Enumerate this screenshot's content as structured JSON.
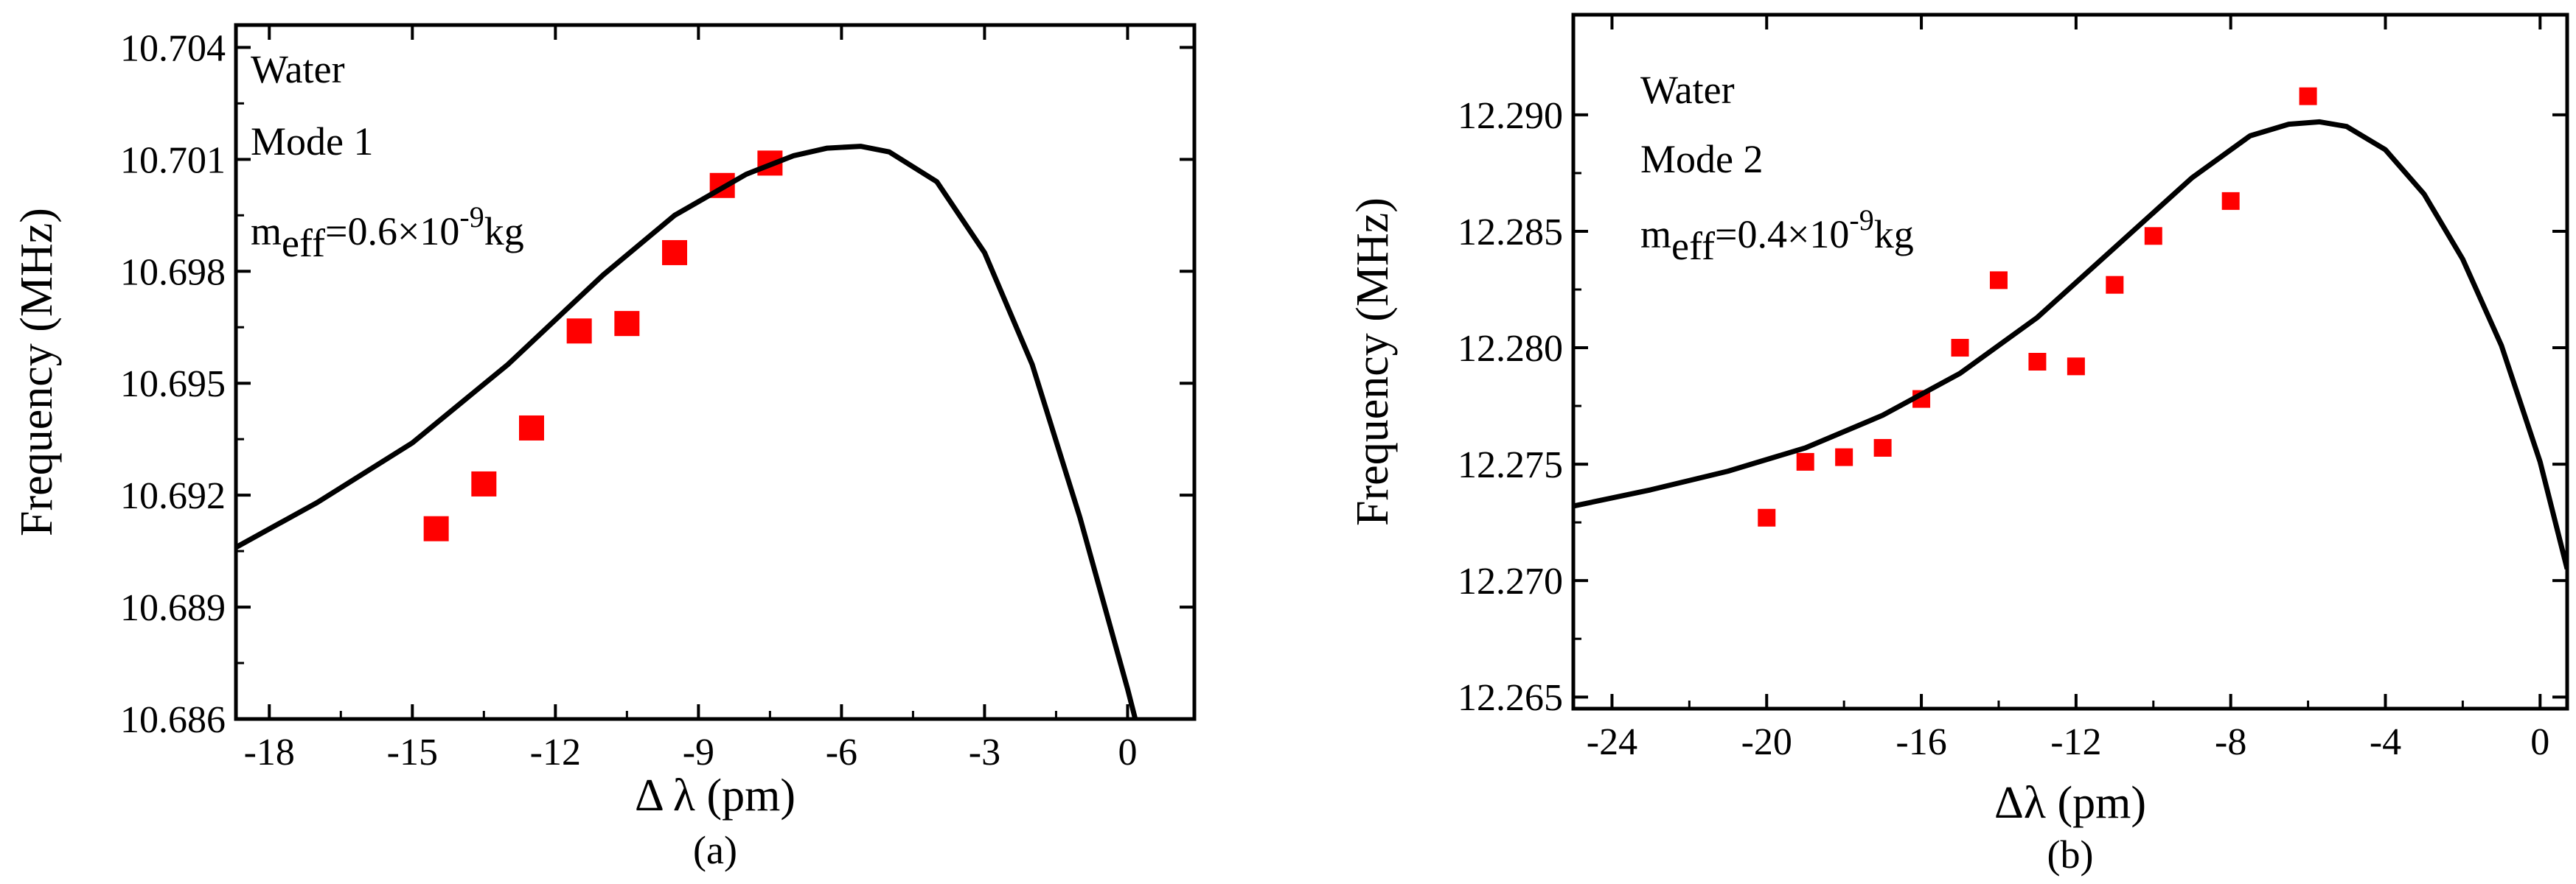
{
  "chart_data": [
    {
      "type": "scatter",
      "panel_label": "(a)",
      "xlabel": "Δ λ (pm)",
      "ylabel": "Frequency (MHz)",
      "xlim": [
        -18.7,
        1.4
      ],
      "ylim": [
        10.686,
        10.7046
      ],
      "xticks": [
        -18,
        -15,
        -12,
        -9,
        -6,
        -3,
        0
      ],
      "xtick_labels": [
        "-18",
        "-15",
        "-12",
        "-9",
        "-6",
        "-3",
        "0"
      ],
      "yticks": [
        10.686,
        10.689,
        10.692,
        10.695,
        10.698,
        10.701,
        10.704
      ],
      "ytick_labels": [
        "10.686",
        "10.689",
        "10.692",
        "10.695",
        "10.698",
        "10.701",
        "10.704"
      ],
      "annotations": {
        "line1": "Water",
        "line2": "Mode 1",
        "meff_prefix": "m",
        "meff_sub": "eff",
        "meff_mid": "=0.6×10",
        "meff_sup": "-9",
        "meff_suffix": "kg"
      },
      "marker_color": "#ff0000",
      "line_color": "#000000",
      "series": [
        {
          "kind": "points",
          "x": [
            -14.5,
            -13.5,
            -12.5,
            -11.5,
            -10.5,
            -9.5,
            -8.5,
            -7.5
          ],
          "y": [
            10.6911,
            10.6923,
            10.6938,
            10.6964,
            10.6966,
            10.6985,
            10.7003,
            10.7009
          ]
        },
        {
          "kind": "line",
          "x": [
            -18.7,
            -17,
            -15,
            -13,
            -11,
            -9.5,
            -8,
            -7,
            -6.3,
            -5.6,
            -5,
            -4,
            -3,
            -2,
            -1,
            0,
            0.2
          ],
          "y": [
            10.6906,
            10.6918,
            10.6934,
            10.6955,
            10.6979,
            10.6995,
            10.7006,
            10.7011,
            10.7013,
            10.70135,
            10.7012,
            10.7004,
            10.6985,
            10.6955,
            10.6914,
            10.6868,
            10.6858
          ]
        }
      ]
    },
    {
      "type": "scatter",
      "panel_label": "(b)",
      "xlabel": "Δλ (pm)",
      "ylabel": "Frequency (MHz)",
      "xlim": [
        -25,
        0.7
      ],
      "ylim": [
        12.2645,
        12.2943
      ],
      "xticks": [
        -24,
        -20,
        -16,
        -12,
        -8,
        -4,
        0
      ],
      "xtick_labels": [
        "-24",
        "-20",
        "-16",
        "-12",
        "-8",
        "-4",
        "0"
      ],
      "yticks": [
        12.265,
        12.27,
        12.275,
        12.28,
        12.285,
        12.29
      ],
      "ytick_labels": [
        "12.265",
        "12.270",
        "12.275",
        "12.280",
        "12.285",
        "12.290"
      ],
      "annotations": {
        "line1": "Water",
        "line2": "Mode 2",
        "meff_prefix": "m",
        "meff_sub": "eff",
        "meff_mid": "=0.4×10",
        "meff_sup": "-9",
        "meff_suffix": "kg"
      },
      "marker_color": "#ff0000",
      "line_color": "#000000",
      "series": [
        {
          "kind": "points",
          "x": [
            -20,
            -19,
            -18,
            -17,
            -16,
            -15,
            -14,
            -13,
            -12,
            -11,
            -10,
            -8,
            -6
          ],
          "y": [
            12.2727,
            12.2751,
            12.2753,
            12.2757,
            12.2778,
            12.28,
            12.2829,
            12.2794,
            12.2792,
            12.2827,
            12.2848,
            12.2863,
            12.2908
          ]
        },
        {
          "kind": "line",
          "x": [
            -25,
            -23,
            -21,
            -19,
            -17,
            -15,
            -13,
            -11,
            -9,
            -7.5,
            -6.5,
            -5.7,
            -5,
            -4,
            -3,
            -2,
            -1,
            0,
            0.7
          ],
          "y": [
            12.2732,
            12.2739,
            12.2747,
            12.2757,
            12.2771,
            12.2789,
            12.2813,
            12.2843,
            12.2873,
            12.2891,
            12.2896,
            12.2897,
            12.2895,
            12.2885,
            12.2866,
            12.2838,
            12.2801,
            12.2751,
            12.2705
          ]
        }
      ]
    }
  ]
}
